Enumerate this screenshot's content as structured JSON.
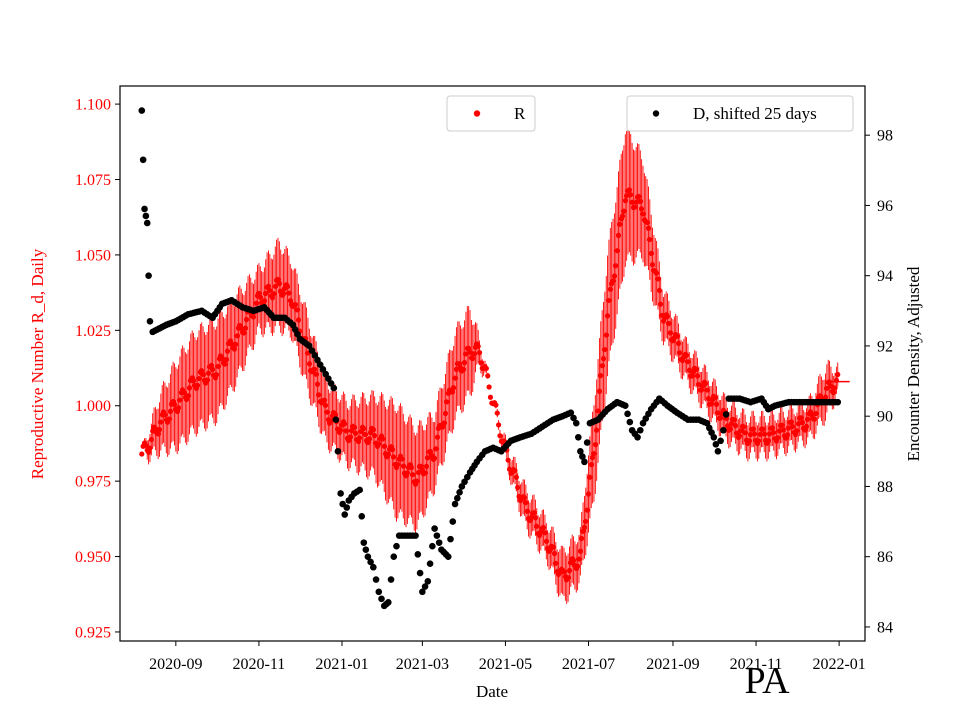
{
  "chart_data": {
    "type": "scatter",
    "title": "",
    "watermark": "PA",
    "xlabel": "Date",
    "ylabel_left": "Reproductive Number R_d, Daily",
    "ylabel_right": "Encounter Density, Adjusted",
    "xlim": [
      "2020-07-22",
      "2022-01-20"
    ],
    "ylim_left": [
      0.922,
      1.106
    ],
    "ylim_right": [
      83.6,
      99.4
    ],
    "x_ticks": [
      "2020-09",
      "2020-11",
      "2021-01",
      "2021-03",
      "2021-05",
      "2021-07",
      "2021-09",
      "2021-11",
      "2022-01"
    ],
    "y_ticks_left": [
      "0.925",
      "0.950",
      "0.975",
      "1.000",
      "1.025",
      "1.050",
      "1.075",
      "1.100"
    ],
    "y_ticks_right": [
      "84",
      "86",
      "88",
      "90",
      "92",
      "94",
      "96",
      "98"
    ],
    "legend": [
      {
        "label": "R",
        "color": "#ff0000",
        "position": "upper-center"
      },
      {
        "label": "D, shifted 25 days",
        "color": "#000000",
        "position": "upper-right"
      }
    ],
    "series": [
      {
        "name": "R",
        "axis": "left",
        "color": "#ff0000",
        "error_bars": true,
        "anchors": [
          [
            "2020-08-07",
            0.984,
            0.0
          ],
          [
            "2020-08-12",
            0.987,
            0.004
          ],
          [
            "2020-08-20",
            0.994,
            0.009
          ],
          [
            "2020-09-01",
            1.0,
            0.014
          ],
          [
            "2020-09-15",
            1.008,
            0.016
          ],
          [
            "2020-10-01",
            1.012,
            0.016
          ],
          [
            "2020-10-15",
            1.022,
            0.014
          ],
          [
            "2020-11-01",
            1.035,
            0.01
          ],
          [
            "2020-11-16",
            1.04,
            0.014
          ],
          [
            "2020-11-25",
            1.036,
            0.012
          ],
          [
            "2020-12-05",
            1.02,
            0.012
          ],
          [
            "2020-12-20",
            0.998,
            0.01
          ],
          [
            "2021-01-05",
            0.991,
            0.01
          ],
          [
            "2021-01-25",
            0.99,
            0.013
          ],
          [
            "2021-02-10",
            0.982,
            0.018
          ],
          [
            "2021-02-25",
            0.976,
            0.016
          ],
          [
            "2021-03-10",
            0.985,
            0.012
          ],
          [
            "2021-03-25",
            1.01,
            0.014
          ],
          [
            "2021-04-05",
            1.018,
            0.014
          ],
          [
            "2021-04-12",
            1.018,
            0.004
          ],
          [
            "2021-04-20",
            1.005,
            0.0
          ],
          [
            "2021-05-01",
            0.985,
            0.003
          ],
          [
            "2021-05-15",
            0.967,
            0.006
          ],
          [
            "2021-06-01",
            0.955,
            0.006
          ],
          [
            "2021-06-12",
            0.943,
            0.008
          ],
          [
            "2021-06-25",
            0.95,
            0.008
          ],
          [
            "2021-07-05",
            0.985,
            0.016
          ],
          [
            "2021-07-15",
            1.03,
            0.02
          ],
          [
            "2021-07-28",
            1.07,
            0.022
          ],
          [
            "2021-08-10",
            1.066,
            0.016
          ],
          [
            "2021-08-25",
            1.03,
            0.008
          ],
          [
            "2021-09-10",
            1.015,
            0.006
          ],
          [
            "2021-09-25",
            1.005,
            0.006
          ],
          [
            "2021-10-10",
            0.995,
            0.006
          ],
          [
            "2021-10-25",
            0.99,
            0.006
          ],
          [
            "2021-11-10",
            0.99,
            0.006
          ],
          [
            "2021-11-25",
            0.992,
            0.006
          ],
          [
            "2021-12-10",
            0.995,
            0.006
          ],
          [
            "2021-12-23",
            1.005,
            0.008
          ],
          [
            "2021-12-31",
            1.008,
            0.004
          ]
        ]
      },
      {
        "name": "D, shifted 25 days",
        "axis": "right",
        "color": "#000000",
        "points": [
          [
            "2020-08-07",
            98.7
          ],
          [
            "2020-08-08",
            97.3
          ],
          [
            "2020-08-09",
            95.9
          ],
          [
            "2020-08-10",
            95.7
          ],
          [
            "2020-08-11",
            95.5
          ],
          [
            "2020-08-12",
            94.0
          ],
          [
            "2020-08-13",
            92.7
          ],
          [
            "2020-08-15",
            92.4
          ],
          [
            "2020-08-20",
            92.5
          ],
          [
            "2020-08-25",
            92.6
          ],
          [
            "2020-09-01",
            92.7
          ],
          [
            "2020-09-10",
            92.9
          ],
          [
            "2020-09-20",
            93.0
          ],
          [
            "2020-09-28",
            92.8
          ],
          [
            "2020-10-05",
            93.2
          ],
          [
            "2020-10-12",
            93.3
          ],
          [
            "2020-10-20",
            93.1
          ],
          [
            "2020-10-28",
            93.0
          ],
          [
            "2020-11-05",
            93.1
          ],
          [
            "2020-11-12",
            92.8
          ],
          [
            "2020-11-20",
            92.8
          ],
          [
            "2020-11-26",
            92.6
          ],
          [
            "2020-12-01",
            92.2
          ],
          [
            "2020-12-08",
            92.0
          ],
          [
            "2020-12-14",
            91.6
          ],
          [
            "2020-12-20",
            91.2
          ],
          [
            "2020-12-26",
            90.8
          ],
          [
            "2020-12-29",
            89.0
          ],
          [
            "2020-12-31",
            87.8
          ],
          [
            "2021-01-03",
            87.2
          ],
          [
            "2021-01-06",
            87.6
          ],
          [
            "2021-01-10",
            87.8
          ],
          [
            "2021-01-14",
            87.9
          ],
          [
            "2021-01-17",
            86.4
          ],
          [
            "2021-01-20",
            86.0
          ],
          [
            "2021-01-24",
            85.7
          ],
          [
            "2021-01-28",
            85.0
          ],
          [
            "2021-02-01",
            84.6
          ],
          [
            "2021-02-04",
            84.7
          ],
          [
            "2021-02-08",
            86.0
          ],
          [
            "2021-02-12",
            86.6
          ],
          [
            "2021-02-18",
            86.6
          ],
          [
            "2021-02-24",
            86.6
          ],
          [
            "2021-03-01",
            85.0
          ],
          [
            "2021-03-05",
            85.3
          ],
          [
            "2021-03-10",
            86.8
          ],
          [
            "2021-03-15",
            86.2
          ],
          [
            "2021-03-20",
            86.0
          ],
          [
            "2021-03-25",
            87.5
          ],
          [
            "2021-03-30",
            88.0
          ],
          [
            "2021-04-05",
            88.4
          ],
          [
            "2021-04-10",
            88.7
          ],
          [
            "2021-04-16",
            89.0
          ],
          [
            "2021-04-22",
            89.1
          ],
          [
            "2021-04-28",
            89.0
          ],
          [
            "2021-05-05",
            89.3
          ],
          [
            "2021-05-12",
            89.4
          ],
          [
            "2021-05-20",
            89.5
          ],
          [
            "2021-05-28",
            89.7
          ],
          [
            "2021-06-05",
            89.9
          ],
          [
            "2021-06-12",
            90.0
          ],
          [
            "2021-06-18",
            90.1
          ],
          [
            "2021-06-22",
            89.8
          ],
          [
            "2021-06-25",
            89.0
          ],
          [
            "2021-06-28",
            88.7
          ],
          [
            "2021-07-02",
            89.8
          ],
          [
            "2021-07-08",
            89.9
          ],
          [
            "2021-07-15",
            90.2
          ],
          [
            "2021-07-22",
            90.4
          ],
          [
            "2021-07-28",
            90.3
          ],
          [
            "2021-08-02",
            89.6
          ],
          [
            "2021-08-06",
            89.4
          ],
          [
            "2021-08-10",
            89.8
          ],
          [
            "2021-08-16",
            90.2
          ],
          [
            "2021-08-22",
            90.5
          ],
          [
            "2021-08-28",
            90.3
          ],
          [
            "2021-09-04",
            90.1
          ],
          [
            "2021-09-12",
            89.9
          ],
          [
            "2021-09-20",
            89.9
          ],
          [
            "2021-09-26",
            89.8
          ],
          [
            "2021-10-01",
            89.4
          ],
          [
            "2021-10-04",
            89.0
          ],
          [
            "2021-10-08",
            89.6
          ],
          [
            "2021-10-12",
            90.5
          ],
          [
            "2021-10-20",
            90.5
          ],
          [
            "2021-10-28",
            90.4
          ],
          [
            "2021-11-05",
            90.5
          ],
          [
            "2021-11-10",
            90.2
          ],
          [
            "2021-11-15",
            90.3
          ],
          [
            "2021-11-25",
            90.4
          ],
          [
            "2021-12-05",
            90.4
          ],
          [
            "2021-12-15",
            90.4
          ],
          [
            "2021-12-25",
            90.4
          ],
          [
            "2021-12-31",
            90.4
          ]
        ]
      }
    ]
  }
}
